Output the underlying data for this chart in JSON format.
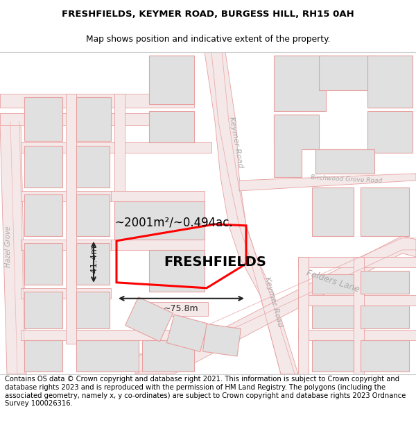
{
  "title_line1": "FRESHFIELDS, KEYMER ROAD, BURGESS HILL, RH15 0AH",
  "title_line2": "Map shows position and indicative extent of the property.",
  "property_label": "FRESHFIELDS",
  "area_label": "~2001m²/~0.494ac.",
  "dim_width": "~75.8m",
  "dim_height": "~41.4m",
  "footer_text": "Contains OS data © Crown copyright and database right 2021. This information is subject to Crown copyright and database rights 2023 and is reproduced with the permission of HM Land Registry. The polygons (including the associated geometry, namely x, y co-ordinates) are subject to Crown copyright and database rights 2023 Ordnance Survey 100026316.",
  "bg_color": "#ffffff",
  "map_bg": "#ffffff",
  "road_color": "#e8a0a0",
  "road_fill": "#f5e8e8",
  "building_fill": "#e0e0e0",
  "building_edge": "#e8a0a0",
  "property_color": "#ff0000",
  "property_lw": 2.2,
  "dim_color": "#222222",
  "title_color": "#000000",
  "road_label_color": "#aaaaaa",
  "title_fs": 9.5,
  "subtitle_fs": 8.8,
  "label_fs": 14,
  "area_fs": 12,
  "dim_fs": 9,
  "footer_fs": 7.2,
  "road_fs": 8.0
}
